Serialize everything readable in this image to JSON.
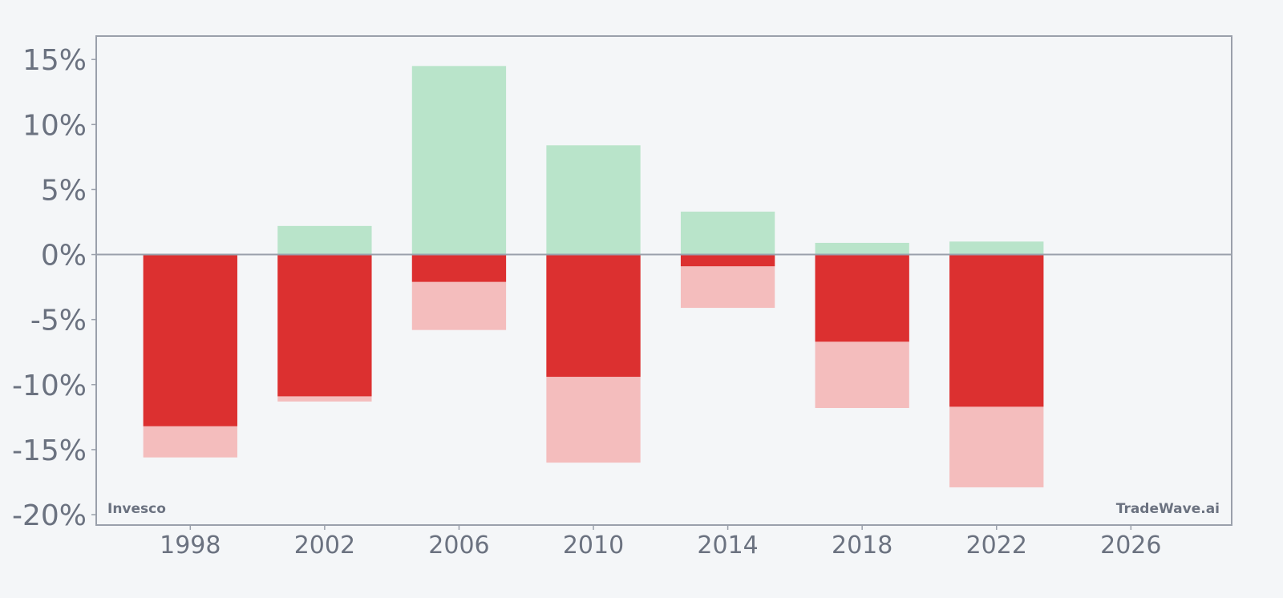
{
  "brand_left": "Invesco",
  "brand_right": "TradeWave.ai",
  "chart_data": {
    "type": "bar",
    "title": "",
    "xlabel": "",
    "ylabel": "",
    "x": [
      1998,
      2002,
      2006,
      2010,
      2014,
      2018,
      2022
    ],
    "series": [
      {
        "values": [
          0,
          2.2,
          14.5,
          8.4,
          3.3,
          0.9,
          1.0
        ]
      },
      {
        "values": [
          -13.2,
          -10.9,
          -2.1,
          -9.4,
          -0.9,
          -6.7,
          -11.7
        ]
      },
      {
        "values": [
          -15.6,
          -11.3,
          -5.8,
          -16.0,
          -4.1,
          -11.8,
          -17.9
        ]
      }
    ],
    "xlim": [
      1995.2,
      2029.0
    ],
    "ylim": [
      -20.8,
      16.8
    ],
    "yticks": [
      15,
      10,
      5,
      0,
      -5,
      -10,
      -15,
      -20
    ],
    "ytick_labels": [
      "15%",
      "10%",
      "5%",
      "0%",
      "-5%",
      "-10%",
      "-15%",
      "-20%"
    ],
    "xticks": [
      1998,
      2002,
      2006,
      2010,
      2014,
      2018,
      2022,
      2026
    ],
    "xtick_labels": [
      "1998",
      "2002",
      "2006",
      "2010",
      "2014",
      "2018",
      "2022",
      "2026"
    ],
    "bar_width_years": 2.8,
    "grid": false,
    "colors": {
      "positive": "#b9e4ca",
      "negative_dark": "#dc3030",
      "negative_light": "#f4bdbd",
      "axis": "#9aa0ab",
      "zero_line": "#9aa0ab",
      "text": "#6b7280",
      "background": "#f4f6f8"
    }
  }
}
